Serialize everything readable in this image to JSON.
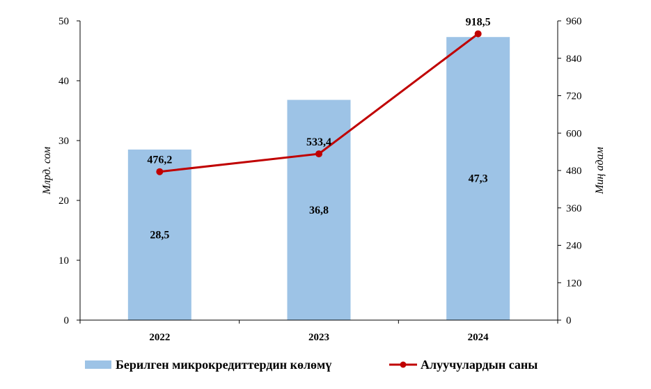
{
  "chart_data": {
    "type": "bar",
    "categories": [
      "2022",
      "2023",
      "2024"
    ],
    "series": [
      {
        "name": "Берилген микрокредиттердин көлөмү",
        "type": "bar",
        "axis": "left",
        "values": [
          28.5,
          36.8,
          47.3
        ],
        "labels": [
          "28,5",
          "36,8",
          "47,3"
        ],
        "color": "#9DC3E6"
      },
      {
        "name": "Алуучулардын саны",
        "type": "line",
        "axis": "right",
        "values": [
          476.2,
          533.4,
          918.5
        ],
        "labels": [
          "476,2",
          "533,4",
          "918,5"
        ],
        "color": "#C00000"
      }
    ],
    "ylabel": "Млрд. сом",
    "y2label": "Миң адам",
    "ylim": [
      0,
      50
    ],
    "y2lim": [
      0,
      960
    ],
    "yticks": [
      "0",
      "10",
      "20",
      "30",
      "40",
      "50"
    ],
    "y2ticks": [
      "0",
      "120",
      "240",
      "360",
      "480",
      "600",
      "720",
      "840",
      "960"
    ],
    "grid": false,
    "legend_position": "bottom"
  }
}
